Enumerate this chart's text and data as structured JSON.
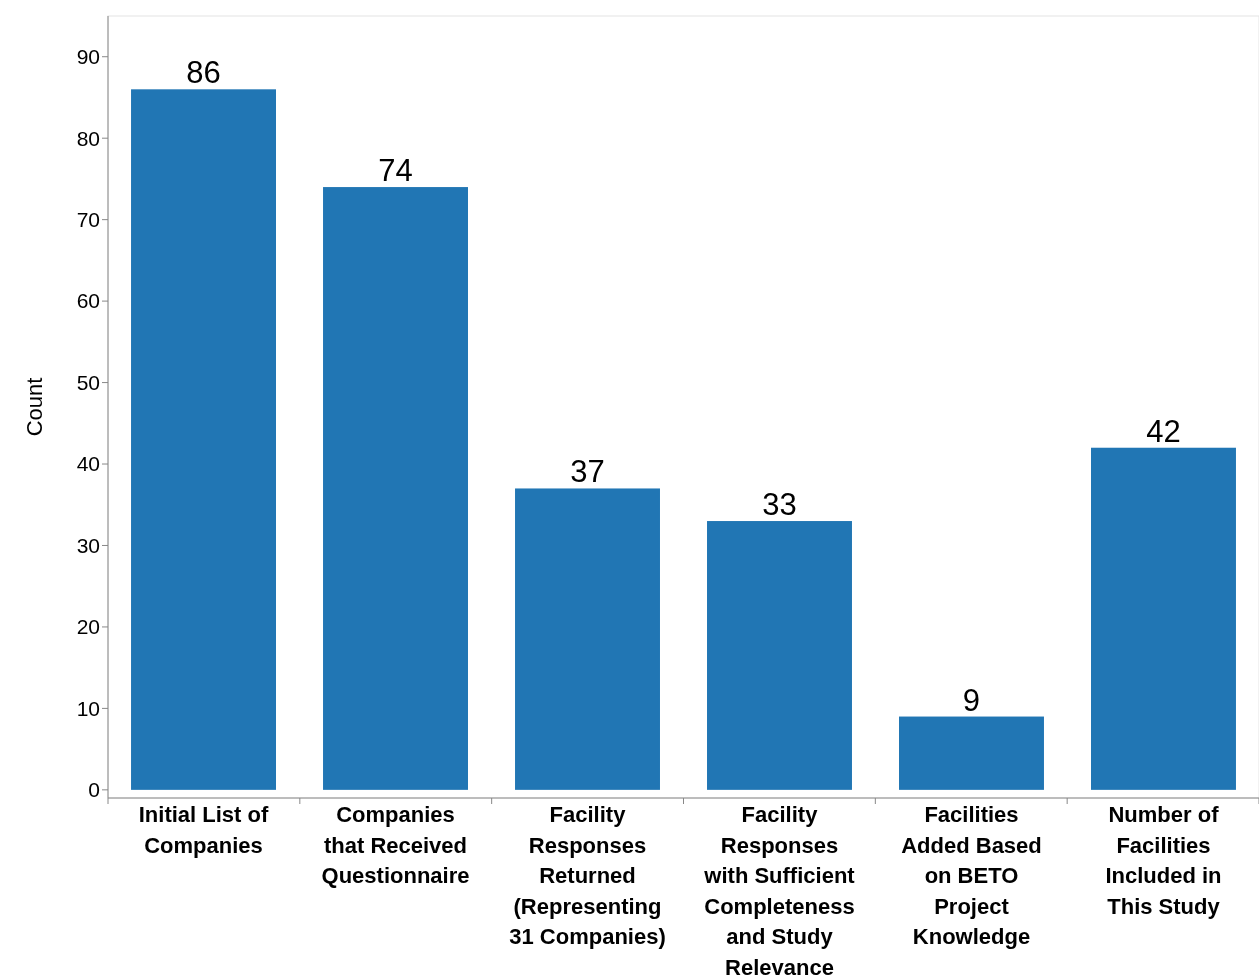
{
  "chart_data": {
    "type": "bar",
    "ylabel": "Count",
    "categories": [
      "Initial List of Companies",
      "Companies that Received Questionnaire",
      "Facility Responses Returned (Representing 31 Companies)",
      "Facility Responses with Sufficient Completeness and Study Relevance",
      "Facilities Added Based on BETO Project Knowledge",
      "Number of Facilities Included in This Study"
    ],
    "values": [
      86,
      74,
      37,
      33,
      9,
      42
    ],
    "color": "#2176b4",
    "ylim": [
      -1,
      95
    ],
    "yticks": [
      0,
      10,
      20,
      30,
      40,
      50,
      60,
      70,
      80,
      90
    ],
    "data_labels": true,
    "grid": false
  }
}
